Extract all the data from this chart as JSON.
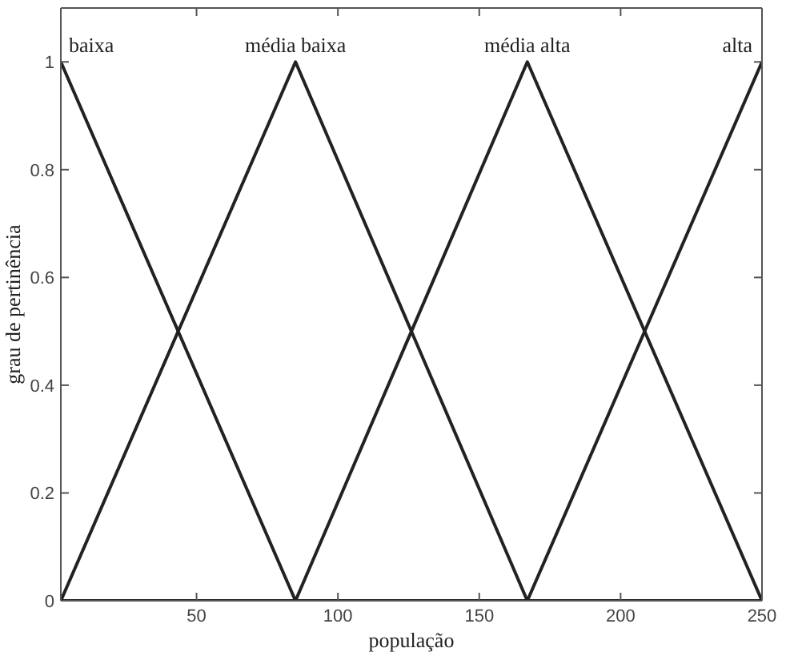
{
  "chart_data": {
    "type": "line",
    "xlabel": "população",
    "ylabel": "grau de pertinência",
    "xlim": [
      2,
      250
    ],
    "ylim": [
      0,
      1.1
    ],
    "xticks": [
      50,
      100,
      150,
      200,
      250
    ],
    "yticks": [
      0,
      0.2,
      0.4,
      0.6,
      0.8,
      1
    ],
    "marker": "none",
    "line_style": "solid",
    "series": [
      {
        "name": "baixa",
        "color": "#222222",
        "x": [
          2,
          85,
          250
        ],
        "values": [
          1,
          0,
          0
        ]
      },
      {
        "name": "média baixa",
        "color": "#222222",
        "x": [
          2,
          85,
          167,
          250
        ],
        "values": [
          0,
          1,
          0,
          0
        ]
      },
      {
        "name": "média alta",
        "color": "#222222",
        "x": [
          2,
          85,
          167,
          250
        ],
        "values": [
          0,
          0,
          1,
          0
        ]
      },
      {
        "name": "alta",
        "color": "#222222",
        "x": [
          2,
          167,
          250
        ],
        "values": [
          0,
          0,
          1
        ]
      }
    ]
  }
}
